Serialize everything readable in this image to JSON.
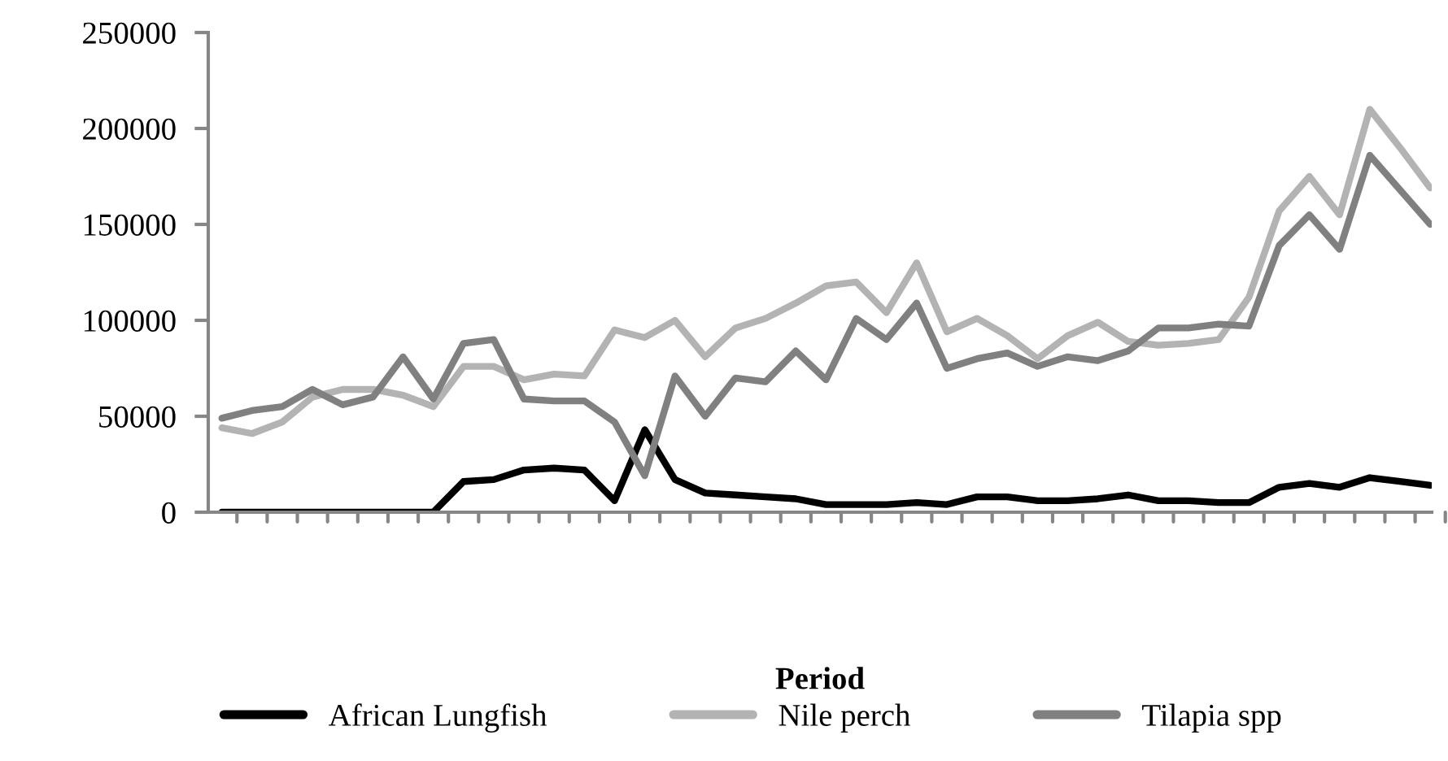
{
  "chart_data": {
    "type": "line",
    "xlabel": "Period",
    "categories": [
      null,
      null,
      null,
      null,
      null,
      null,
      null,
      null,
      null,
      null,
      null,
      null,
      null,
      null,
      null,
      null,
      null,
      null,
      null,
      null,
      null,
      null,
      null,
      null,
      null,
      null,
      null,
      null,
      null,
      null,
      null,
      null,
      null,
      null,
      null,
      null,
      null,
      null,
      null,
      null,
      null
    ],
    "series": [
      {
        "name": "African Lungfish",
        "color": "#000000",
        "values": [
          0,
          0,
          0,
          0,
          0,
          0,
          0,
          0,
          16000,
          17000,
          22000,
          23000,
          22000,
          6000,
          43000,
          17000,
          10000,
          9000,
          8000,
          7000,
          4000,
          4000,
          4000,
          5000,
          4000,
          8000,
          8000,
          6000,
          6000,
          7000,
          9000,
          6000,
          6000,
          5000,
          5000,
          13000,
          15000,
          13000,
          18000,
          16000,
          14000
        ]
      },
      {
        "name": "Nile perch",
        "color": "#b3b3b3",
        "values": [
          44000,
          41000,
          47000,
          60000,
          64000,
          64000,
          61000,
          55000,
          76000,
          76000,
          69000,
          72000,
          71000,
          95000,
          91000,
          100000,
          81000,
          96000,
          101000,
          109000,
          118000,
          120000,
          104000,
          130000,
          94000,
          101000,
          92000,
          80000,
          92000,
          99000,
          89000,
          87000,
          88000,
          90000,
          112000,
          157000,
          175000,
          155000,
          210000,
          190000,
          169000
        ]
      },
      {
        "name": "Tilapia spp",
        "color": "#808080",
        "values": [
          49000,
          53000,
          55000,
          64000,
          56000,
          60000,
          81000,
          59000,
          88000,
          90000,
          59000,
          58000,
          58000,
          47000,
          19000,
          71000,
          50000,
          70000,
          68000,
          84000,
          69000,
          101000,
          90000,
          109000,
          75000,
          80000,
          83000,
          76000,
          81000,
          79000,
          84000,
          96000,
          96000,
          98000,
          97000,
          139000,
          155000,
          137000,
          186000,
          168000,
          150000
        ]
      }
    ],
    "ylim": [
      0,
      250000
    ],
    "yticks": [
      0,
      50000,
      100000,
      150000,
      200000,
      250000
    ],
    "grid": false,
    "legend": "bottom",
    "marker": "none",
    "line_style": "solid"
  }
}
